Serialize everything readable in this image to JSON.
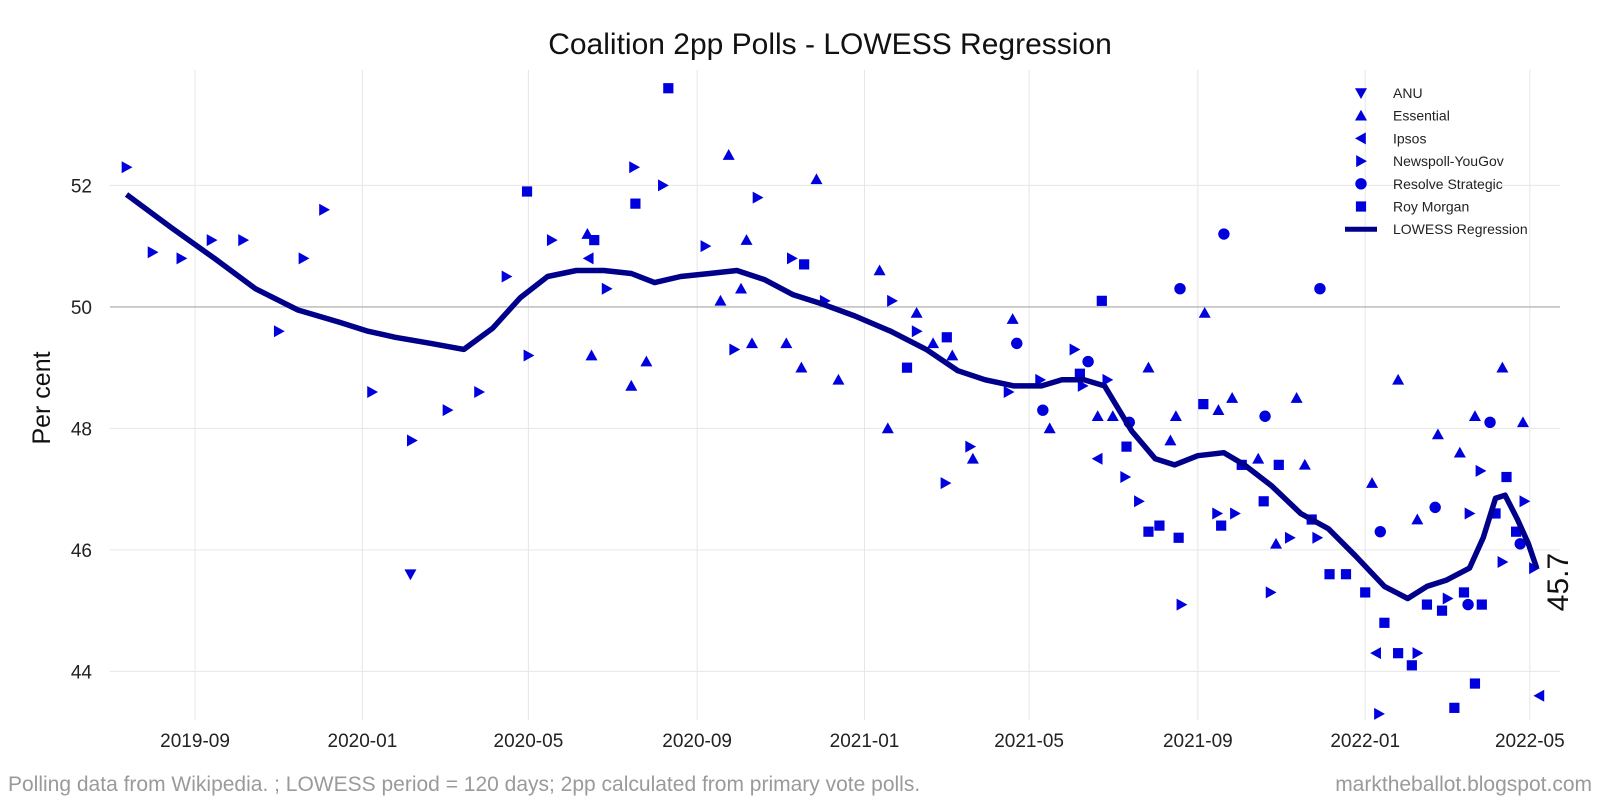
{
  "chart_data": {
    "type": "scatter",
    "title": "Coalition 2pp Polls - LOWESS Regression",
    "xlabel": "",
    "ylabel": "Per cent",
    "x_type": "date",
    "xlim": [
      "2019-07-01",
      "2022-05-23"
    ],
    "ylim": [
      43.2,
      53.9
    ],
    "x_ticks": [
      "2019-09-01",
      "2020-01-01",
      "2020-05-01",
      "2020-09-01",
      "2021-01-01",
      "2021-05-01",
      "2021-09-01",
      "2022-01-01",
      "2022-05-01"
    ],
    "x_tick_labels": [
      "2019-09",
      "2020-01",
      "2020-05",
      "2020-09",
      "2021-01",
      "2021-05",
      "2021-09",
      "2022-01",
      "2022-05"
    ],
    "y_ticks": [
      44,
      46,
      48,
      50,
      52
    ],
    "y_tick_labels": [
      "44",
      "46",
      "48",
      "50",
      "52"
    ],
    "reference_line": 50,
    "grid": true,
    "legend_position": "top-right",
    "end_label": "45.7",
    "colors": {
      "points": "#0000dd",
      "line": "#00008b",
      "grid": "#e6e6e6",
      "reference": "#b8b8b8"
    },
    "series": [
      {
        "name": "ANU",
        "marker": "triangle-down",
        "points": [
          [
            "2020-02-05",
            45.6
          ]
        ]
      },
      {
        "name": "Essential",
        "marker": "triangle-up",
        "points": [
          [
            "2020-06-13",
            51.2
          ],
          [
            "2020-06-16",
            49.2
          ],
          [
            "2020-07-15",
            48.7
          ],
          [
            "2020-07-26",
            49.1
          ],
          [
            "2020-09-18",
            50.1
          ],
          [
            "2020-09-24",
            52.5
          ],
          [
            "2020-10-03",
            50.3
          ],
          [
            "2020-10-07",
            51.1
          ],
          [
            "2020-10-11",
            49.4
          ],
          [
            "2020-11-05",
            49.4
          ],
          [
            "2020-11-16",
            49.0
          ],
          [
            "2020-11-27",
            52.1
          ],
          [
            "2020-12-13",
            48.8
          ],
          [
            "2021-01-12",
            50.6
          ],
          [
            "2021-01-18",
            48.0
          ],
          [
            "2021-02-08",
            49.9
          ],
          [
            "2021-02-20",
            49.4
          ],
          [
            "2021-03-06",
            49.2
          ],
          [
            "2021-03-21",
            47.5
          ],
          [
            "2021-04-19",
            49.8
          ],
          [
            "2021-05-16",
            48.0
          ],
          [
            "2021-06-20",
            48.2
          ],
          [
            "2021-07-01",
            48.2
          ],
          [
            "2021-07-27",
            49.0
          ],
          [
            "2021-08-12",
            47.8
          ],
          [
            "2021-08-16",
            48.2
          ],
          [
            "2021-09-06",
            49.9
          ],
          [
            "2021-09-16",
            48.3
          ],
          [
            "2021-09-26",
            48.5
          ],
          [
            "2021-10-15",
            47.5
          ],
          [
            "2021-10-28",
            46.1
          ],
          [
            "2021-11-12",
            48.5
          ],
          [
            "2021-11-18",
            47.4
          ],
          [
            "2022-01-06",
            47.1
          ],
          [
            "2022-01-25",
            48.8
          ],
          [
            "2022-02-08",
            46.5
          ],
          [
            "2022-02-23",
            47.9
          ],
          [
            "2022-03-11",
            47.6
          ],
          [
            "2022-03-22",
            48.2
          ],
          [
            "2022-04-11",
            49.0
          ],
          [
            "2022-04-26",
            48.1
          ]
        ]
      },
      {
        "name": "Ipsos",
        "marker": "triangle-left",
        "points": [
          [
            "2020-06-14",
            50.8
          ],
          [
            "2021-06-20",
            47.5
          ],
          [
            "2022-01-09",
            44.3
          ],
          [
            "2022-05-08",
            43.6
          ]
        ]
      },
      {
        "name": "Newspoll-YouGov",
        "marker": "triangle-right",
        "points": [
          [
            "2019-07-13",
            52.3
          ],
          [
            "2019-08-01",
            50.9
          ],
          [
            "2019-08-22",
            50.8
          ],
          [
            "2019-09-13",
            51.1
          ],
          [
            "2019-10-06",
            51.1
          ],
          [
            "2019-11-01",
            49.6
          ],
          [
            "2019-11-19",
            50.8
          ],
          [
            "2019-12-04",
            51.6
          ],
          [
            "2020-01-08",
            48.6
          ],
          [
            "2020-02-06",
            47.8
          ],
          [
            "2020-03-03",
            48.3
          ],
          [
            "2020-03-26",
            48.6
          ],
          [
            "2020-04-15",
            50.5
          ],
          [
            "2020-05-01",
            49.2
          ],
          [
            "2020-05-18",
            51.1
          ],
          [
            "2020-06-27",
            50.3
          ],
          [
            "2020-07-17",
            52.3
          ],
          [
            "2020-08-07",
            52.0
          ],
          [
            "2020-09-07",
            51.0
          ],
          [
            "2020-09-28",
            49.3
          ],
          [
            "2020-10-15",
            51.8
          ],
          [
            "2020-11-09",
            50.8
          ],
          [
            "2020-12-03",
            50.1
          ],
          [
            "2021-01-21",
            50.1
          ],
          [
            "2021-02-08",
            49.6
          ],
          [
            "2021-03-01",
            47.1
          ],
          [
            "2021-03-19",
            47.7
          ],
          [
            "2021-04-16",
            48.6
          ],
          [
            "2021-05-09",
            48.8
          ],
          [
            "2021-06-03",
            49.3
          ],
          [
            "2021-06-09",
            48.7
          ],
          [
            "2021-06-27",
            48.8
          ],
          [
            "2021-07-10",
            47.2
          ],
          [
            "2021-07-20",
            46.8
          ],
          [
            "2021-08-20",
            45.1
          ],
          [
            "2021-09-15",
            46.6
          ],
          [
            "2021-09-28",
            46.6
          ],
          [
            "2021-10-24",
            45.3
          ],
          [
            "2021-11-07",
            46.2
          ],
          [
            "2021-11-27",
            46.2
          ],
          [
            "2022-01-11",
            43.3
          ],
          [
            "2022-02-08",
            44.3
          ],
          [
            "2022-03-02",
            45.2
          ],
          [
            "2022-03-18",
            46.6
          ],
          [
            "2022-03-26",
            47.3
          ],
          [
            "2022-04-11",
            45.8
          ],
          [
            "2022-04-27",
            46.8
          ],
          [
            "2022-05-04",
            45.7
          ]
        ]
      },
      {
        "name": "Resolve Strategic",
        "marker": "circle",
        "points": [
          [
            "2021-04-22",
            49.4
          ],
          [
            "2021-05-11",
            48.3
          ],
          [
            "2021-06-13",
            49.1
          ],
          [
            "2021-07-13",
            48.1
          ],
          [
            "2021-08-19",
            50.3
          ],
          [
            "2021-09-20",
            51.2
          ],
          [
            "2021-10-20",
            48.2
          ],
          [
            "2021-11-29",
            50.3
          ],
          [
            "2022-01-12",
            46.3
          ],
          [
            "2022-02-21",
            46.7
          ],
          [
            "2022-03-17",
            45.1
          ],
          [
            "2022-04-02",
            48.1
          ],
          [
            "2022-04-24",
            46.1
          ]
        ]
      },
      {
        "name": "Roy Morgan",
        "marker": "square",
        "points": [
          [
            "2020-04-30",
            51.9
          ],
          [
            "2020-06-18",
            51.1
          ],
          [
            "2020-07-18",
            51.7
          ],
          [
            "2020-08-11",
            53.6
          ],
          [
            "2020-11-18",
            50.7
          ],
          [
            "2021-02-01",
            49.0
          ],
          [
            "2021-03-02",
            49.5
          ],
          [
            "2021-06-07",
            48.9
          ],
          [
            "2021-06-23",
            50.1
          ],
          [
            "2021-07-11",
            47.7
          ],
          [
            "2021-07-27",
            46.3
          ],
          [
            "2021-08-04",
            46.4
          ],
          [
            "2021-08-18",
            46.2
          ],
          [
            "2021-09-05",
            48.4
          ],
          [
            "2021-09-18",
            46.4
          ],
          [
            "2021-10-03",
            47.4
          ],
          [
            "2021-10-19",
            46.8
          ],
          [
            "2021-10-30",
            47.4
          ],
          [
            "2021-11-23",
            46.5
          ],
          [
            "2021-12-06",
            45.6
          ],
          [
            "2021-12-18",
            45.6
          ],
          [
            "2022-01-01",
            45.3
          ],
          [
            "2022-01-15",
            44.8
          ],
          [
            "2022-01-25",
            44.3
          ],
          [
            "2022-02-04",
            44.1
          ],
          [
            "2022-02-15",
            45.1
          ],
          [
            "2022-02-26",
            45.0
          ],
          [
            "2022-03-07",
            43.4
          ],
          [
            "2022-03-14",
            45.3
          ],
          [
            "2022-03-22",
            43.8
          ],
          [
            "2022-03-27",
            45.1
          ],
          [
            "2022-04-06",
            46.6
          ],
          [
            "2022-04-14",
            47.2
          ],
          [
            "2022-04-21",
            46.3
          ]
        ]
      },
      {
        "name": "LOWESS Regression",
        "marker": "line",
        "points": [
          [
            "2019-07-13",
            51.85
          ],
          [
            "2019-08-15",
            51.3
          ],
          [
            "2019-09-15",
            50.8
          ],
          [
            "2019-10-15",
            50.3
          ],
          [
            "2019-11-15",
            49.95
          ],
          [
            "2019-12-15",
            49.75
          ],
          [
            "2020-01-05",
            49.6
          ],
          [
            "2020-01-25",
            49.5
          ],
          [
            "2020-02-20",
            49.4
          ],
          [
            "2020-03-15",
            49.3
          ],
          [
            "2020-04-05",
            49.65
          ],
          [
            "2020-04-25",
            50.15
          ],
          [
            "2020-05-15",
            50.5
          ],
          [
            "2020-06-05",
            50.6
          ],
          [
            "2020-06-25",
            50.6
          ],
          [
            "2020-07-15",
            50.55
          ],
          [
            "2020-08-01",
            50.4
          ],
          [
            "2020-08-20",
            50.5
          ],
          [
            "2020-09-10",
            50.55
          ],
          [
            "2020-09-30",
            50.6
          ],
          [
            "2020-10-20",
            50.45
          ],
          [
            "2020-11-10",
            50.2
          ],
          [
            "2020-12-01",
            50.05
          ],
          [
            "2020-12-25",
            49.85
          ],
          [
            "2021-01-20",
            49.6
          ],
          [
            "2021-02-15",
            49.3
          ],
          [
            "2021-03-10",
            48.95
          ],
          [
            "2021-03-30",
            48.8
          ],
          [
            "2021-04-20",
            48.7
          ],
          [
            "2021-05-10",
            48.7
          ],
          [
            "2021-05-25",
            48.8
          ],
          [
            "2021-06-10",
            48.8
          ],
          [
            "2021-06-25",
            48.7
          ],
          [
            "2021-07-15",
            47.95
          ],
          [
            "2021-08-01",
            47.5
          ],
          [
            "2021-08-15",
            47.4
          ],
          [
            "2021-09-01",
            47.55
          ],
          [
            "2021-09-20",
            47.6
          ],
          [
            "2021-10-05",
            47.4
          ],
          [
            "2021-10-25",
            47.05
          ],
          [
            "2021-11-15",
            46.6
          ],
          [
            "2021-12-05",
            46.35
          ],
          [
            "2021-12-25",
            45.9
          ],
          [
            "2022-01-15",
            45.4
          ],
          [
            "2022-02-01",
            45.2
          ],
          [
            "2022-02-15",
            45.4
          ],
          [
            "2022-03-01",
            45.5
          ],
          [
            "2022-03-18",
            45.7
          ],
          [
            "2022-03-28",
            46.2
          ],
          [
            "2022-04-06",
            46.85
          ],
          [
            "2022-04-13",
            46.9
          ],
          [
            "2022-04-22",
            46.5
          ],
          [
            "2022-04-30",
            46.1
          ],
          [
            "2022-05-06",
            45.7
          ]
        ]
      }
    ]
  },
  "footer": {
    "left": "Polling data from Wikipedia. ; LOWESS period = 120 days; 2pp calculated from primary vote polls.",
    "right": "marktheballot.blogspot.com"
  }
}
